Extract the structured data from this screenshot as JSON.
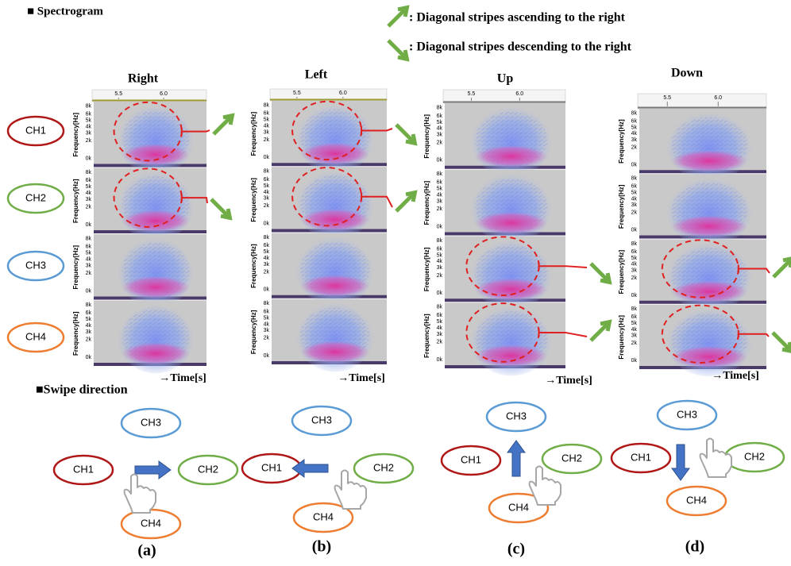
{
  "header": {
    "title": "■ Spectrogram",
    "swipe_title": "■Swipe direction"
  },
  "legend": [
    ": Diagonal stripes ascending to the right",
    ": Diagonal stripes descending to the right"
  ],
  "channels": [
    "CH1",
    "CH2",
    "CH3",
    "CH4"
  ],
  "spectrogram": {
    "y_label": "Frequency[Hz]",
    "y_ticks": [
      "8k",
      "6k",
      "5k",
      "4k",
      "3k",
      "2k",
      "0k"
    ],
    "x_ticks": [
      "5.5",
      "6.0"
    ],
    "x_label": "→Time[s]"
  },
  "columns": [
    {
      "title": "Right",
      "caption": "(a)"
    },
    {
      "title": "Left",
      "caption": "(b)"
    },
    {
      "title": "Up",
      "caption": "(c)"
    },
    {
      "title": "Down",
      "caption": "(d)"
    }
  ]
}
